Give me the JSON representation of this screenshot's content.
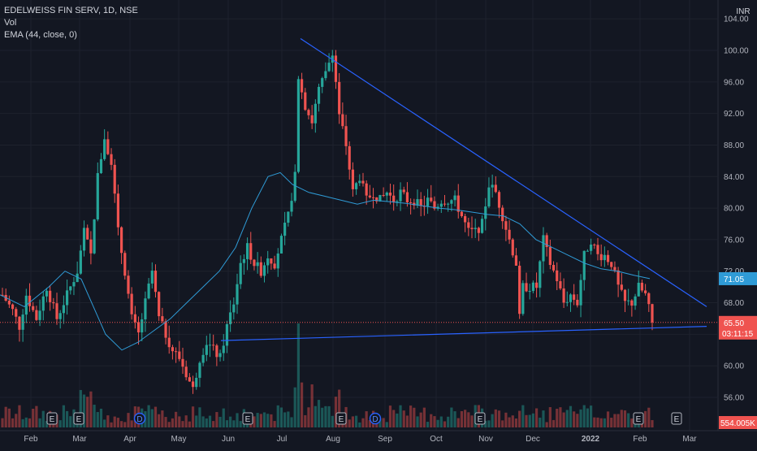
{
  "legend": {
    "symbol_line": "EDELWEISS FIN SERV, 1D, NSE",
    "vol_label": "Vol",
    "ema_label": "EMA (44, close, 0)"
  },
  "currency": "INR",
  "price_scale": {
    "ticks": [
      "104.00",
      "100.00",
      "96.00",
      "92.00",
      "88.00",
      "84.00",
      "80.00",
      "76.00",
      "72.00",
      "68.00",
      "64.00",
      "60.00",
      "56.00"
    ],
    "tick_values": [
      104,
      100,
      96,
      92,
      88,
      84,
      80,
      76,
      72,
      68,
      64,
      60,
      56
    ],
    "ylim": [
      54.5,
      105
    ]
  },
  "time_scale": {
    "labels": [
      "Feb",
      "Mar",
      "Apr",
      "May",
      "Jun",
      "Jul",
      "Aug",
      "Sep",
      "Oct",
      "Nov",
      "Dec",
      "2022",
      "Feb",
      "Mar"
    ],
    "bold": [
      false,
      false,
      false,
      false,
      false,
      false,
      false,
      false,
      false,
      false,
      false,
      true,
      false,
      false
    ]
  },
  "badges": {
    "ema_value": "71.05",
    "last_price": "65.50",
    "countdown": "03:11:15",
    "volume": "554.005K"
  },
  "colors": {
    "up": "#26a69a",
    "down": "#ef5350",
    "ema": "#2f9bd6",
    "trendline": "#2962ff",
    "ema_badge": "#2f9bd6",
    "price_badge": "#ef5350",
    "background": "#131722"
  },
  "events": [
    {
      "type": "E",
      "label": "E"
    },
    {
      "type": "E",
      "label": "E"
    },
    {
      "type": "D",
      "label": "D"
    },
    {
      "type": "E",
      "label": "E"
    },
    {
      "type": "E",
      "label": "E"
    },
    {
      "type": "D",
      "label": "D"
    },
    {
      "type": "E",
      "label": "E"
    },
    {
      "type": "E",
      "label": "E"
    },
    {
      "type": "E",
      "label": "E"
    }
  ],
  "chart_data": {
    "type": "candlestick",
    "title": "EDELWEISS FIN SERV, 1D, NSE",
    "ylim": [
      54.5,
      105
    ],
    "last_price": 65.5,
    "ema_last": 71.05,
    "anchors": [
      [
        0,
        69
      ],
      [
        6,
        67
      ],
      [
        10,
        65
      ],
      [
        14,
        69
      ],
      [
        20,
        66
      ],
      [
        26,
        70
      ],
      [
        32,
        66
      ],
      [
        38,
        69
      ],
      [
        44,
        72
      ],
      [
        48,
        77
      ],
      [
        52,
        74
      ],
      [
        56,
        84
      ],
      [
        60,
        89
      ],
      [
        64,
        86
      ],
      [
        68,
        77
      ],
      [
        72,
        72
      ],
      [
        76,
        66
      ],
      [
        80,
        64
      ],
      [
        84,
        68
      ],
      [
        88,
        72
      ],
      [
        92,
        66
      ],
      [
        96,
        64
      ],
      [
        100,
        62
      ],
      [
        104,
        61
      ],
      [
        108,
        59
      ],
      [
        112,
        57
      ],
      [
        116,
        61
      ],
      [
        120,
        63
      ],
      [
        124,
        62
      ],
      [
        128,
        61
      ],
      [
        132,
        65
      ],
      [
        136,
        68
      ],
      [
        140,
        73
      ],
      [
        144,
        75
      ],
      [
        148,
        73
      ],
      [
        152,
        72
      ],
      [
        156,
        74
      ],
      [
        160,
        73
      ],
      [
        164,
        76
      ],
      [
        168,
        79
      ],
      [
        172,
        84
      ],
      [
        174,
        97
      ],
      [
        178,
        93
      ],
      [
        182,
        91
      ],
      [
        186,
        95
      ],
      [
        190,
        97
      ],
      [
        194,
        100
      ],
      [
        198,
        92
      ],
      [
        202,
        88
      ],
      [
        206,
        82
      ],
      [
        210,
        84
      ],
      [
        214,
        81
      ],
      [
        218,
        82
      ],
      [
        222,
        81
      ],
      [
        226,
        82
      ],
      [
        230,
        81
      ],
      [
        234,
        82
      ],
      [
        238,
        81
      ],
      [
        242,
        81
      ],
      [
        246,
        80
      ],
      [
        250,
        81
      ],
      [
        254,
        80
      ],
      [
        258,
        81
      ],
      [
        262,
        81
      ],
      [
        266,
        81
      ],
      [
        270,
        79
      ],
      [
        274,
        77
      ],
      [
        278,
        77
      ],
      [
        282,
        78
      ],
      [
        286,
        83
      ],
      [
        290,
        82
      ],
      [
        294,
        79
      ],
      [
        298,
        76
      ],
      [
        302,
        73
      ],
      [
        304,
        66
      ],
      [
        306,
        70
      ],
      [
        310,
        70
      ],
      [
        314,
        70
      ],
      [
        318,
        76
      ],
      [
        322,
        73
      ],
      [
        326,
        71
      ],
      [
        330,
        68
      ],
      [
        334,
        69
      ],
      [
        338,
        68
      ],
      [
        342,
        74
      ],
      [
        346,
        76
      ],
      [
        350,
        74
      ],
      [
        354,
        74
      ],
      [
        358,
        73
      ],
      [
        362,
        70
      ],
      [
        366,
        68
      ],
      [
        370,
        68
      ],
      [
        374,
        70
      ],
      [
        378,
        69
      ],
      [
        382,
        65.5
      ]
    ],
    "ema_series": [
      [
        0,
        69
      ],
      [
        30,
        67.5
      ],
      [
        60,
        70
      ],
      [
        80,
        72
      ],
      [
        100,
        71
      ],
      [
        130,
        64
      ],
      [
        150,
        62
      ],
      [
        170,
        63
      ],
      [
        190,
        64.5
      ],
      [
        210,
        66
      ],
      [
        230,
        68
      ],
      [
        250,
        70
      ],
      [
        270,
        72
      ],
      [
        290,
        75
      ],
      [
        310,
        80
      ],
      [
        330,
        84
      ],
      [
        345,
        84.5
      ],
      [
        360,
        83
      ],
      [
        380,
        82
      ],
      [
        400,
        81.5
      ],
      [
        420,
        81
      ],
      [
        440,
        80.5
      ],
      [
        460,
        81
      ],
      [
        480,
        80.8
      ],
      [
        500,
        80.6
      ],
      [
        520,
        80.3
      ],
      [
        540,
        80
      ],
      [
        560,
        79.8
      ],
      [
        580,
        79.5
      ],
      [
        600,
        79.2
      ],
      [
        620,
        79
      ],
      [
        640,
        78
      ],
      [
        660,
        76
      ],
      [
        680,
        75
      ],
      [
        700,
        74
      ],
      [
        720,
        73
      ],
      [
        740,
        72.3
      ],
      [
        760,
        72
      ],
      [
        780,
        71.5
      ],
      [
        800,
        71.05
      ]
    ],
    "trendlines": [
      {
        "name": "resistance",
        "from": [
          370,
          101.5
        ],
        "to": [
          870,
          67.5
        ]
      },
      {
        "name": "support",
        "from": [
          272,
          63.2
        ],
        "to": [
          870,
          65.0
        ]
      }
    ]
  }
}
